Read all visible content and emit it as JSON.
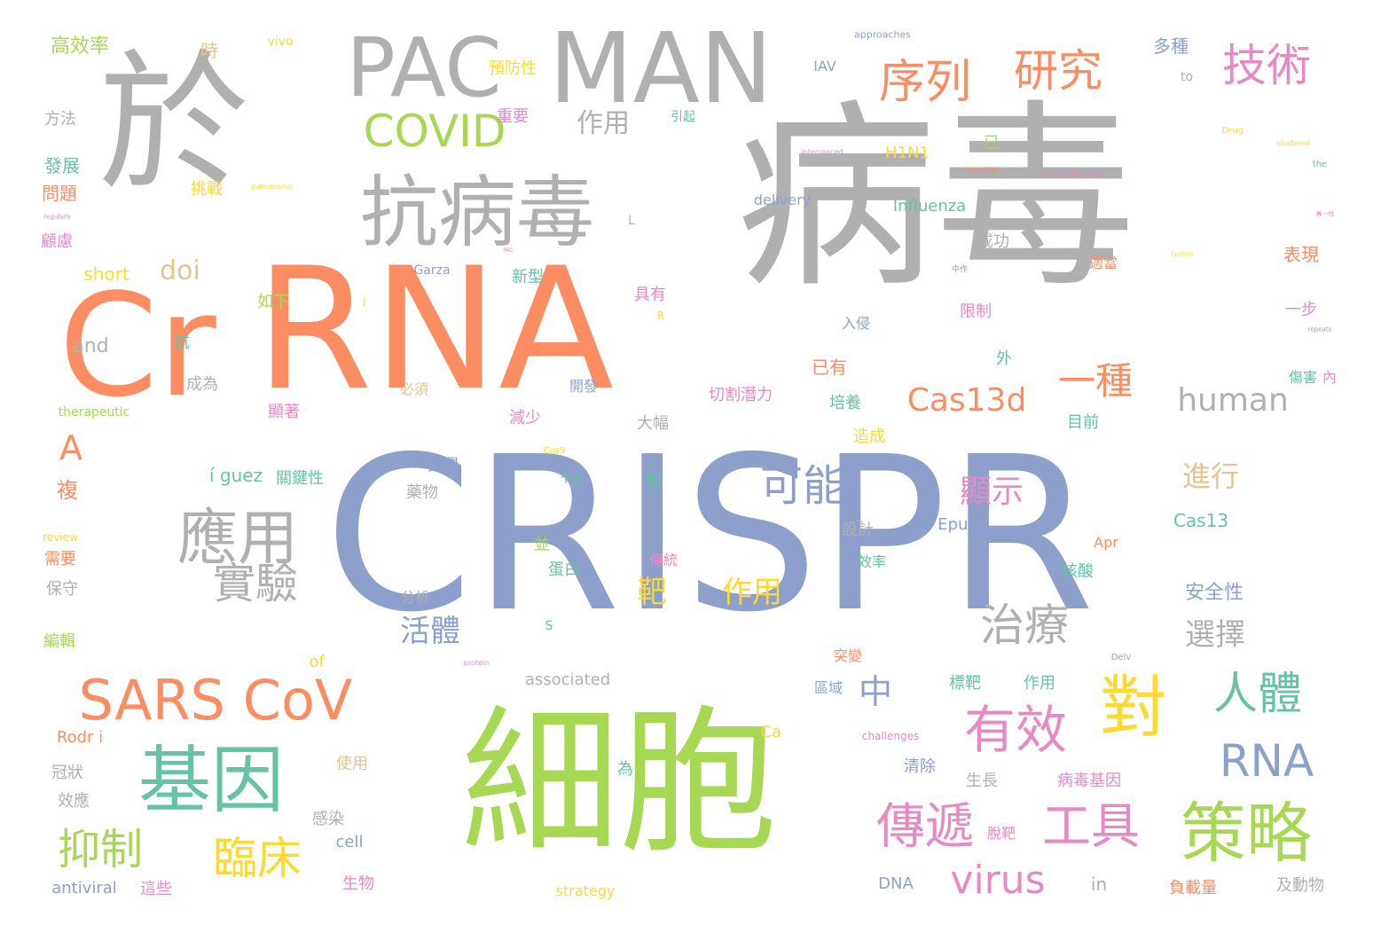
{
  "colors": {
    "gray": "#b0b0b0",
    "orange": "#fc8d62",
    "blue": "#8da0cb",
    "green": "#a6d854",
    "teal": "#66c2a5",
    "pink": "#e78ac3",
    "yellow": "#ffd92f",
    "tan": "#e5c494"
  },
  "words": [
    {
      "text": "病毒",
      "color": "gray"
    },
    {
      "text": "CRISPR",
      "color": "blue"
    },
    {
      "text": "細胞",
      "color": "green"
    },
    {
      "text": "於",
      "color": "gray"
    },
    {
      "text": "RNA",
      "color": "orange"
    },
    {
      "text": "Cr",
      "color": "orange"
    },
    {
      "text": "PAC",
      "color": "gray"
    },
    {
      "text": "MAN",
      "color": "gray"
    },
    {
      "text": "抗病毒",
      "color": "gray"
    },
    {
      "text": "基因",
      "color": "teal"
    },
    {
      "text": "策略",
      "color": "green"
    },
    {
      "text": "應用",
      "color": "gray"
    },
    {
      "text": "SARS CoV",
      "color": "orange"
    },
    {
      "text": "對",
      "color": "yellow"
    },
    {
      "text": "有效",
      "color": "pink"
    },
    {
      "text": "傳遞",
      "color": "pink"
    },
    {
      "text": "工具",
      "color": "pink"
    },
    {
      "text": "序列",
      "color": "orange"
    },
    {
      "text": "研究",
      "color": "orange"
    },
    {
      "text": "技術",
      "color": "pink"
    },
    {
      "text": "COVID",
      "color": "green"
    },
    {
      "text": "可能",
      "color": "blue"
    },
    {
      "text": "實驗",
      "color": "gray"
    },
    {
      "text": "臨床",
      "color": "yellow"
    },
    {
      "text": "抑制",
      "color": "green"
    },
    {
      "text": "治療",
      "color": "gray"
    },
    {
      "text": "人體",
      "color": "teal"
    },
    {
      "text": "RNA",
      "color": "blue"
    },
    {
      "text": "virus",
      "color": "pink"
    },
    {
      "text": "一種",
      "color": "orange"
    },
    {
      "text": "中",
      "color": "blue"
    },
    {
      "text": "Cas13d",
      "color": "orange"
    },
    {
      "text": "human",
      "color": "gray"
    },
    {
      "text": "靶",
      "color": "yellow"
    },
    {
      "text": "作用",
      "color": "yellow"
    },
    {
      "text": "顯示",
      "color": "pink"
    },
    {
      "text": "進行",
      "color": "tan"
    },
    {
      "text": "A",
      "color": "orange"
    },
    {
      "text": "活體",
      "color": "blue"
    },
    {
      "text": "選擇",
      "color": "gray"
    },
    {
      "text": "doi",
      "color": "tan"
    },
    {
      "text": "作用",
      "color": "gray"
    },
    {
      "text": "高效率",
      "color": "green"
    },
    {
      "text": "時",
      "color": "tan"
    },
    {
      "text": "vivo",
      "color": "yellow"
    },
    {
      "text": "approaches",
      "color": "blue"
    },
    {
      "text": "多種",
      "color": "blue"
    },
    {
      "text": "預防性",
      "color": "yellow"
    },
    {
      "text": "IAV",
      "color": "blue"
    },
    {
      "text": "to",
      "color": "gray"
    },
    {
      "text": "重要",
      "color": "pink"
    },
    {
      "text": "方法",
      "color": "gray"
    },
    {
      "text": "引起",
      "color": "teal"
    },
    {
      "text": "Drug",
      "color": "yellow"
    },
    {
      "text": "發展",
      "color": "teal"
    },
    {
      "text": "問題",
      "color": "orange"
    },
    {
      "text": "挑戰",
      "color": "yellow"
    },
    {
      "text": "palindromic",
      "color": "yellow"
    },
    {
      "text": "H1N1",
      "color": "yellow"
    },
    {
      "text": "已",
      "color": "green"
    },
    {
      "text": "the",
      "color": "teal"
    },
    {
      "text": "interspaced",
      "color": "pink"
    },
    {
      "text": "clustered",
      "color": "yellow"
    },
    {
      "text": "hepatitis",
      "color": "orange"
    },
    {
      "text": "immunodeficiency",
      "color": "pink"
    },
    {
      "text": "delivery",
      "color": "blue"
    },
    {
      "text": "Influenza",
      "color": "teal"
    },
    {
      "text": "L",
      "color": "gray"
    },
    {
      "text": "regularly",
      "color": "pink"
    },
    {
      "text": "顧慮",
      "color": "pink"
    },
    {
      "text": "short",
      "color": "yellow"
    },
    {
      "text": "專一性",
      "color": "pink"
    },
    {
      "text": "成功",
      "color": "gray"
    },
    {
      "text": "表現",
      "color": "orange"
    },
    {
      "text": "Garza",
      "color": "blue"
    },
    {
      "text": "PAC",
      "color": "orange"
    },
    {
      "text": "Epstein",
      "color": "yellow"
    },
    {
      "text": "新型",
      "color": "teal"
    },
    {
      "text": "中作",
      "color": "blue"
    },
    {
      "text": "適當",
      "color": "orange"
    },
    {
      "text": "如下",
      "color": "green"
    },
    {
      "text": "j",
      "color": "yellow"
    },
    {
      "text": "具有",
      "color": "pink"
    },
    {
      "text": "限制",
      "color": "pink"
    },
    {
      "text": "一步",
      "color": "pink"
    },
    {
      "text": "R",
      "color": "yellow"
    },
    {
      "text": "入侵",
      "color": "blue"
    },
    {
      "text": "and",
      "color": "gray"
    },
    {
      "text": "抗",
      "color": "teal"
    },
    {
      "text": "repeats",
      "color": "blue"
    },
    {
      "text": "已有",
      "color": "orange"
    },
    {
      "text": "外",
      "color": "teal"
    },
    {
      "text": "成為",
      "color": "gray"
    },
    {
      "text": "必須",
      "color": "tan"
    },
    {
      "text": "開發",
      "color": "blue"
    },
    {
      "text": "傷害",
      "color": "teal"
    },
    {
      "text": "內",
      "color": "pink"
    },
    {
      "text": "切割潛力",
      "color": "pink"
    },
    {
      "text": "培養",
      "color": "teal"
    },
    {
      "text": "顯著",
      "color": "pink"
    },
    {
      "text": "therapeutic",
      "color": "green"
    },
    {
      "text": "減少",
      "color": "pink"
    },
    {
      "text": "大幅",
      "color": "gray"
    },
    {
      "text": "目前",
      "color": "teal"
    },
    {
      "text": "造成",
      "color": "yellow"
    },
    {
      "text": "í guez",
      "color": "teal"
    },
    {
      "text": "關鍵性",
      "color": "teal"
    },
    {
      "text": "變異",
      "color": "blue"
    },
    {
      "text": "藥物",
      "color": "gray"
    },
    {
      "text": "十分",
      "color": "teal"
    },
    {
      "text": "製",
      "color": "teal"
    },
    {
      "text": "Cas9",
      "color": "yellow"
    },
    {
      "text": "複",
      "color": "orange"
    },
    {
      "text": "設計",
      "color": "gray"
    },
    {
      "text": "Epub",
      "color": "blue"
    },
    {
      "text": "Cas13",
      "color": "teal"
    },
    {
      "text": "review",
      "color": "yellow"
    },
    {
      "text": "需要",
      "color": "orange"
    },
    {
      "text": "並",
      "color": "green"
    },
    {
      "text": "蛋白",
      "color": "teal"
    },
    {
      "text": "Apr",
      "color": "orange"
    },
    {
      "text": "保守",
      "color": "gray"
    },
    {
      "text": "傳統",
      "color": "pink"
    },
    {
      "text": "效率",
      "color": "teal"
    },
    {
      "text": "核酸",
      "color": "teal"
    },
    {
      "text": "安全性",
      "color": "blue"
    },
    {
      "text": "分析",
      "color": "gray"
    },
    {
      "text": "S",
      "color": "teal"
    },
    {
      "text": "編輯",
      "color": "green"
    },
    {
      "text": "of",
      "color": "yellow"
    },
    {
      "text": "突變",
      "color": "orange"
    },
    {
      "text": "associated",
      "color": "gray"
    },
    {
      "text": "標靶",
      "color": "teal"
    },
    {
      "text": "作用",
      "color": "teal"
    },
    {
      "text": "Delv",
      "color": "blue"
    },
    {
      "text": "區域",
      "color": "blue"
    },
    {
      "text": "Rodr i",
      "color": "orange"
    },
    {
      "text": "Ca",
      "color": "yellow"
    },
    {
      "text": "challenges",
      "color": "pink"
    },
    {
      "text": "冠狀",
      "color": "gray"
    },
    {
      "text": "使用",
      "color": "tan"
    },
    {
      "text": "清除",
      "color": "blue"
    },
    {
      "text": "效應",
      "color": "gray"
    },
    {
      "text": "為",
      "color": "teal"
    },
    {
      "text": "生長",
      "color": "gray"
    },
    {
      "text": "病毒基因",
      "color": "pink"
    },
    {
      "text": "感染",
      "color": "gray"
    },
    {
      "text": "脫靶",
      "color": "pink"
    },
    {
      "text": "cell",
      "color": "blue"
    },
    {
      "text": "生物",
      "color": "pink"
    },
    {
      "text": "antiviral",
      "color": "blue"
    },
    {
      "text": "這些",
      "color": "pink"
    },
    {
      "text": "strategy",
      "color": "yellow"
    },
    {
      "text": "DNA",
      "color": "blue"
    },
    {
      "text": "in",
      "color": "gray"
    },
    {
      "text": "負載量",
      "color": "orange"
    },
    {
      "text": "及動物",
      "color": "gray"
    },
    {
      "text": "protein",
      "color": "pink"
    }
  ]
}
